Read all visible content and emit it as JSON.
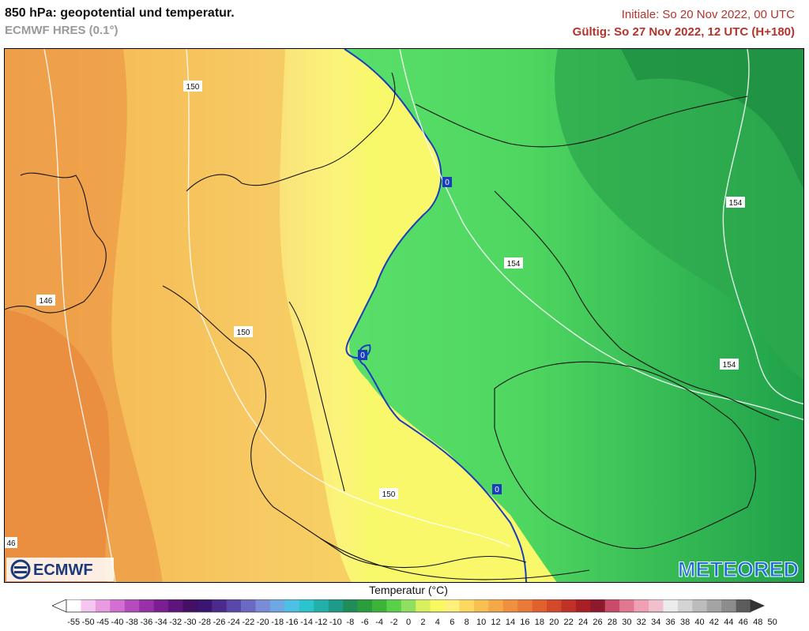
{
  "header": {
    "title": "850 hPa: geopotential und temperatur.",
    "model": "ECMWF HRES (0.1°)",
    "init": "Initiale: So 20 Nov 2022, 00 UTC",
    "valid": "Gültig: So 27 Nov 2022, 12 UTC (H+180)"
  },
  "map": {
    "contour_labels": [
      "150",
      "146",
      "150",
      "154",
      "154",
      "154",
      "150",
      "46"
    ],
    "zero_isotherm_labels": [
      "0",
      "0",
      "0"
    ],
    "logos": {
      "left": "ECMWF",
      "right": "METEORED"
    }
  },
  "colorbar": {
    "title": "Temperatur (°C)",
    "ticks": [
      "-55",
      "-50",
      "-45",
      "-40",
      "-38",
      "-36",
      "-34",
      "-32",
      "-30",
      "-28",
      "-26",
      "-24",
      "-22",
      "-20",
      "-18",
      "-16",
      "-14",
      "-12",
      "-10",
      "-8",
      "-6",
      "-4",
      "-2",
      "0",
      "2",
      "4",
      "6",
      "8",
      "10",
      "12",
      "14",
      "16",
      "18",
      "20",
      "22",
      "24",
      "26",
      "28",
      "30",
      "32",
      "34",
      "36",
      "38",
      "40",
      "42",
      "44",
      "46",
      "48",
      "50"
    ],
    "colors": [
      "#ffffff",
      "#f5c6f0",
      "#e89be0",
      "#d26fd0",
      "#b54cbd",
      "#9830a8",
      "#7a1f92",
      "#5e147a",
      "#431065",
      "#3a1670",
      "#4a2a8a",
      "#5a48a8",
      "#6a6ac4",
      "#7a8cd8",
      "#6ea8e4",
      "#4ec0e4",
      "#2cc4cc",
      "#22b0a8",
      "#1e9a88",
      "#1f8c5a",
      "#2a9e3c",
      "#3cb43a",
      "#5ad04a",
      "#90e060",
      "#d8f060",
      "#f8f860",
      "#fef07a",
      "#fcd860",
      "#f8c050",
      "#f4a848",
      "#ef9040",
      "#e97a38",
      "#e0602e",
      "#d24a2a",
      "#c03226",
      "#a82024",
      "#8c1a2c",
      "#c84c6a",
      "#e27890",
      "#f0a0b4",
      "#f2c0cc",
      "#ececec",
      "#d4d4d4",
      "#bcbcbc",
      "#a4a4a4",
      "#8c8c8c",
      "#5c5c5c"
    ]
  }
}
